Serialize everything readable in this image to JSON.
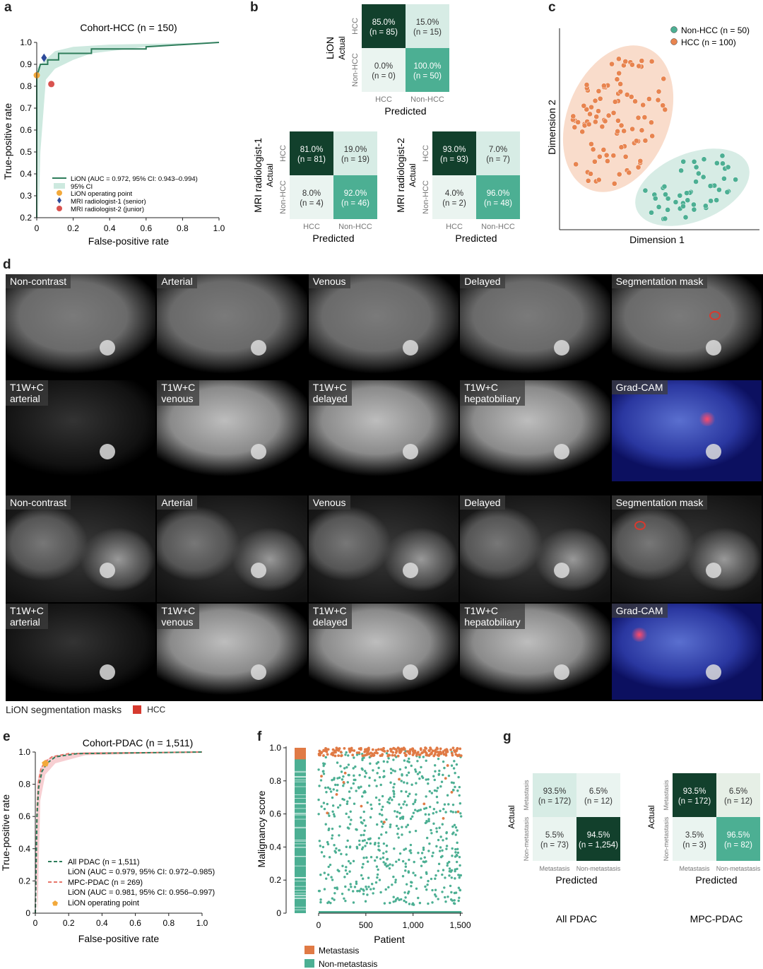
{
  "panel_labels": {
    "a": "a",
    "b": "b",
    "c": "c",
    "d": "d",
    "e": "e",
    "f": "f",
    "g": "g"
  },
  "panel_a": {
    "title": "Cohort-HCC (n = 150)",
    "xlabel": "False-positive rate",
    "ylabel": "True-positive rate",
    "xticks": [
      "0",
      "0.2",
      "0.4",
      "0.6",
      "0.8",
      "1.0"
    ],
    "yticks": [
      "0.2",
      "0.3",
      "0.4",
      "0.5",
      "0.6",
      "0.7",
      "0.8",
      "0.9",
      "1.0"
    ],
    "legend": [
      "LiON (AUC = 0.972, 95% CI: 0.943–0.994)",
      "95% CI",
      "LiON operating point",
      "MRI radiologist-1 (senior)",
      "MRI radiologist-2 (junior)"
    ],
    "colors": {
      "roc": "#2e7d5b",
      "ci": "#cde9df",
      "op": "#f2a93b",
      "r1": "#2c4a9a",
      "r2": "#d9534f"
    }
  },
  "panel_b": {
    "xlabel": "Predicted",
    "actual_label": "Actual",
    "class_labels": [
      "HCC",
      "Non-HCC"
    ],
    "matrices": [
      {
        "name": "LiON",
        "cells": [
          [
            "85.0%",
            "(n = 85)"
          ],
          [
            "15.0%",
            "(n = 15)"
          ],
          [
            "0.0%",
            "(n = 0)"
          ],
          [
            "100.0%",
            "(n = 50)"
          ]
        ]
      },
      {
        "name": "MRI radiologist-1",
        "cells": [
          [
            "81.0%",
            "(n = 81)"
          ],
          [
            "19.0%",
            "(n = 19)"
          ],
          [
            "8.0%",
            "(n = 4)"
          ],
          [
            "92.0%",
            "(n = 46)"
          ]
        ]
      },
      {
        "name": "MRI radiologist-2",
        "cells": [
          [
            "93.0%",
            "(n = 93)"
          ],
          [
            "7.0%",
            "(n = 7)"
          ],
          [
            "4.0%",
            "(n = 2)"
          ],
          [
            "96.0%",
            "(n = 48)"
          ]
        ]
      }
    ]
  },
  "panel_c": {
    "xlabel": "Dimension 1",
    "ylabel": "Dimension 2",
    "legend": [
      "Non-HCC (n = 50)",
      "HCC (n = 100)"
    ],
    "colors": {
      "nonhcc": "#4caf93",
      "hcc": "#e8844f"
    }
  },
  "panel_d": {
    "row1": [
      "Non-contrast",
      "Arterial",
      "Venous",
      "Delayed",
      "Segmentation mask"
    ],
    "row2": [
      "T1W+C\narterial",
      "T1W+C\nvenous",
      "T1W+C\ndelayed",
      "T1W+C\nhepatobiliary",
      "Grad-CAM"
    ],
    "row3": [
      "Non-contrast",
      "Arterial",
      "Venous",
      "Delayed",
      "Segmentation mask"
    ],
    "row4": [
      "T1W+C\narterial",
      "T1W+C\nvenous",
      "T1W+C\ndelayed",
      "T1W+C\nhepatobiliary",
      "Grad-CAM"
    ],
    "mask_legend_title": "LiON segmentation masks",
    "mask_legend_item": "HCC",
    "mask_color": "#d63a2f"
  },
  "panel_e": {
    "title": "Cohort-PDAC (n = 1,511)",
    "xlabel": "False-positive rate",
    "ylabel": "True-positive rate",
    "xticks": [
      "0",
      "0.2",
      "0.4",
      "0.6",
      "0.8",
      "1.0"
    ],
    "yticks": [
      "0",
      "0.2",
      "0.4",
      "0.6",
      "0.8",
      "1.0"
    ],
    "legend": [
      "All PDAC (n = 1,511)",
      "LiON (AUC = 0.979, 95% CI: 0.972–0.985)",
      "MPC-PDAC (n = 269)",
      "LiON (AUC = 0.981, 95% CI: 0.956–0.997)",
      "LiON operating point"
    ]
  },
  "panel_f": {
    "xlabel": "Patient",
    "ylabel": "Malignancy score",
    "xticks": [
      "0",
      "500",
      "1,000",
      "1,500"
    ],
    "yticks": [
      "0",
      "0.2",
      "0.4",
      "0.6",
      "0.8",
      "1.0"
    ],
    "legend": [
      "Metastasis",
      "Non-metastasis"
    ]
  },
  "panel_g": {
    "xlabel": "Predicted",
    "actual_label": "Actual",
    "class_labels": [
      "Metastasis",
      "Non-metastasis"
    ],
    "matrices": [
      {
        "name": "All PDAC",
        "cells": [
          [
            "93.5%",
            "(n = 172)"
          ],
          [
            "6.5%",
            "(n = 12)"
          ],
          [
            "5.5%",
            "(n = 73)"
          ],
          [
            "94.5%",
            "(n = 1,254)"
          ]
        ]
      },
      {
        "name": "MPC-PDAC",
        "cells": [
          [
            "93.5%",
            "(n = 172)"
          ],
          [
            "6.5%",
            "(n = 12)"
          ],
          [
            "3.5%",
            "(n = 3)"
          ],
          [
            "96.5%",
            "(n = 82)"
          ]
        ]
      }
    ]
  }
}
